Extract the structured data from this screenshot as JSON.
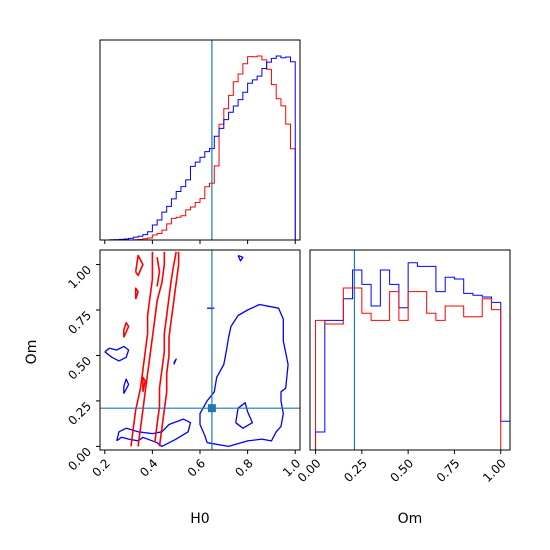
{
  "chart_data": [
    {
      "panel": "H0-histogram",
      "type": "histogram",
      "xlim": [
        0.18,
        1.02
      ],
      "bins": [
        0.18,
        0.2,
        0.22,
        0.24,
        0.26,
        0.28,
        0.3,
        0.32,
        0.34,
        0.36,
        0.38,
        0.4,
        0.42,
        0.44,
        0.46,
        0.48,
        0.5,
        0.52,
        0.54,
        0.56,
        0.58,
        0.6,
        0.62,
        0.64,
        0.66,
        0.68,
        0.7,
        0.72,
        0.74,
        0.76,
        0.78,
        0.8,
        0.82,
        0.84,
        0.86,
        0.88,
        0.9,
        0.92,
        0.94,
        0.96,
        0.98,
        1.0,
        1.02
      ],
      "series": [
        {
          "color": "#ff0000",
          "values": [
            0,
            0,
            0,
            0,
            0,
            0,
            0,
            2,
            5,
            11,
            18,
            44,
            58,
            88,
            144,
            192,
            203,
            216,
            268,
            294,
            335,
            368,
            474,
            505,
            660,
            1030,
            1168,
            1288,
            1409,
            1478,
            1569,
            1632,
            1631,
            1638,
            1604,
            1520,
            1383,
            1257,
            1194,
            1031,
            812,
            0
          ]
        },
        {
          "color": "#0000ff",
          "values": [
            0,
            0,
            2,
            4,
            7,
            10,
            17,
            29,
            39,
            55,
            84,
            154,
            205,
            286,
            345,
            422,
            498,
            548,
            617,
            755,
            799,
            848,
            906,
            937,
            1064,
            1145,
            1235,
            1310,
            1374,
            1440,
            1515,
            1608,
            1642,
            1681,
            1759,
            1824,
            1863,
            1887,
            1869,
            1877,
            1828,
            0
          ]
        }
      ],
      "truth": 0.65
    },
    {
      "panel": "H0-Om-contours",
      "type": "contour",
      "xlabel": "H0",
      "ylabel": "Om",
      "xlim": [
        0.18,
        1.02
      ],
      "ylim": [
        -0.02,
        1.08
      ],
      "xticks": [
        "0.2",
        "0.4",
        "0.6",
        "0.8",
        "1.0"
      ],
      "yticks": [
        "0.00",
        "0.25",
        "0.50",
        "0.75",
        "1.00"
      ],
      "truth": {
        "x": 0.65,
        "y": 0.21
      },
      "series": [
        {
          "color": "#0000ff",
          "contours": [
            [
              [
                0.63,
                0.02
              ],
              [
                0.72,
                0.0
              ],
              [
                0.8,
                0.03
              ],
              [
                0.86,
                0.04
              ],
              [
                0.9,
                0.03
              ],
              [
                0.92,
                0.08
              ],
              [
                0.94,
                0.11
              ],
              [
                0.95,
                0.18
              ],
              [
                0.94,
                0.25
              ],
              [
                0.94,
                0.3
              ],
              [
                0.96,
                0.32
              ],
              [
                0.97,
                0.45
              ],
              [
                0.95,
                0.58
              ],
              [
                0.95,
                0.7
              ],
              [
                0.93,
                0.76
              ],
              [
                0.85,
                0.78
              ],
              [
                0.8,
                0.75
              ],
              [
                0.76,
                0.72
              ],
              [
                0.73,
                0.66
              ],
              [
                0.72,
                0.6
              ],
              [
                0.71,
                0.52
              ],
              [
                0.7,
                0.45
              ],
              [
                0.67,
                0.38
              ],
              [
                0.66,
                0.3
              ],
              [
                0.63,
                0.25
              ],
              [
                0.6,
                0.18
              ],
              [
                0.6,
                0.12
              ],
              [
                0.62,
                0.06
              ],
              [
                0.63,
                0.02
              ]
            ],
            [
              [
                0.25,
                0.03
              ],
              [
                0.27,
                0.05
              ],
              [
                0.3,
                0.04
              ],
              [
                0.34,
                0.03
              ],
              [
                0.36,
                0.05
              ],
              [
                0.42,
                0.02
              ],
              [
                0.44,
                0.0
              ],
              [
                0.5,
                0.04
              ],
              [
                0.55,
                0.08
              ],
              [
                0.56,
                0.13
              ],
              [
                0.53,
                0.15
              ],
              [
                0.47,
                0.12
              ],
              [
                0.44,
                0.08
              ],
              [
                0.4,
                0.07
              ],
              [
                0.34,
                0.08
              ],
              [
                0.29,
                0.1
              ],
              [
                0.26,
                0.08
              ],
              [
                0.25,
                0.03
              ]
            ],
            [
              [
                0.2,
                0.52
              ],
              [
                0.23,
                0.49
              ],
              [
                0.26,
                0.47
              ],
              [
                0.29,
                0.49
              ],
              [
                0.3,
                0.53
              ],
              [
                0.28,
                0.55
              ],
              [
                0.25,
                0.53
              ],
              [
                0.22,
                0.54
              ],
              [
                0.2,
                0.52
              ]
            ],
            [
              [
                0.75,
                0.13
              ],
              [
                0.78,
                0.1
              ],
              [
                0.82,
                0.13
              ],
              [
                0.8,
                0.19
              ],
              [
                0.79,
                0.24
              ],
              [
                0.76,
                0.21
              ],
              [
                0.75,
                0.13
              ]
            ],
            [
              [
                0.28,
                0.29
              ],
              [
                0.3,
                0.34
              ],
              [
                0.29,
                0.37
              ],
              [
                0.28,
                0.33
              ],
              [
                0.28,
                0.29
              ]
            ],
            [
              [
                0.63,
                0.76
              ],
              [
                0.66,
                0.76
              ]
            ],
            [
              [
                0.76,
                1.05
              ],
              [
                0.77,
                1.02
              ],
              [
                0.78,
                1.04
              ],
              [
                0.76,
                1.05
              ]
            ],
            [
              [
                0.49,
                0.45
              ],
              [
                0.5,
                0.48
              ],
              [
                0.49,
                0.46
              ]
            ]
          ]
        },
        {
          "color": "#ff0000",
          "contours": [
            [
              [
                0.31,
                0.0
              ],
              [
                0.32,
                0.1
              ],
              [
                0.33,
                0.2
              ],
              [
                0.35,
                0.32
              ],
              [
                0.36,
                0.42
              ],
              [
                0.37,
                0.52
              ],
              [
                0.38,
                0.62
              ],
              [
                0.38,
                0.72
              ],
              [
                0.39,
                0.82
              ],
              [
                0.4,
                0.92
              ],
              [
                0.4,
                1.0
              ],
              [
                0.4,
                1.07
              ]
            ],
            [
              [
                0.34,
                0.0
              ],
              [
                0.35,
                0.1
              ],
              [
                0.36,
                0.2
              ],
              [
                0.37,
                0.3
              ],
              [
                0.38,
                0.4
              ],
              [
                0.39,
                0.5
              ],
              [
                0.4,
                0.6
              ],
              [
                0.41,
                0.7
              ],
              [
                0.42,
                0.8
              ],
              [
                0.44,
                0.9
              ],
              [
                0.45,
                1.0
              ],
              [
                0.45,
                1.07
              ]
            ],
            [
              [
                0.41,
                0.02
              ],
              [
                0.42,
                0.12
              ],
              [
                0.43,
                0.22
              ],
              [
                0.43,
                0.32
              ],
              [
                0.44,
                0.42
              ],
              [
                0.45,
                0.52
              ],
              [
                0.45,
                0.62
              ],
              [
                0.46,
                0.72
              ],
              [
                0.47,
                0.82
              ],
              [
                0.48,
                0.92
              ],
              [
                0.49,
                1.0
              ],
              [
                0.5,
                1.07
              ]
            ],
            [
              [
                0.43,
                0.0
              ],
              [
                0.44,
                0.1
              ],
              [
                0.45,
                0.2
              ],
              [
                0.46,
                0.3
              ],
              [
                0.46,
                0.4
              ],
              [
                0.47,
                0.5
              ],
              [
                0.47,
                0.6
              ],
              [
                0.48,
                0.7
              ],
              [
                0.49,
                0.8
              ],
              [
                0.5,
                0.9
              ],
              [
                0.51,
                1.0
              ],
              [
                0.51,
                1.07
              ]
            ],
            [
              [
                0.33,
                0.96
              ],
              [
                0.34,
                1.05
              ],
              [
                0.36,
                1.0
              ],
              [
                0.34,
                0.94
              ],
              [
                0.33,
                0.96
              ]
            ],
            [
              [
                0.42,
                0.88
              ],
              [
                0.43,
                0.96
              ],
              [
                0.42,
                1.04
              ]
            ],
            [
              [
                0.28,
                0.6
              ],
              [
                0.3,
                0.66
              ],
              [
                0.29,
                0.68
              ],
              [
                0.28,
                0.64
              ],
              [
                0.28,
                0.6
              ]
            ],
            [
              [
                0.33,
                0.81
              ],
              [
                0.34,
                0.85
              ],
              [
                0.33,
                0.87
              ],
              [
                0.33,
                0.81
              ]
            ],
            [
              [
                0.36,
                0.3
              ],
              [
                0.37,
                0.36
              ],
              [
                0.36,
                0.38
              ],
              [
                0.36,
                0.3
              ]
            ]
          ]
        }
      ]
    },
    {
      "panel": "Om-histogram",
      "type": "histogram",
      "xlabel": "Om",
      "xlim": [
        -0.03,
        1.05
      ],
      "xticks": [
        "0.00",
        "0.25",
        "0.50",
        "0.75",
        "1.00"
      ],
      "bins": [
        0.0,
        0.05,
        0.1,
        0.15,
        0.2,
        0.25,
        0.3,
        0.35,
        0.4,
        0.45,
        0.5,
        0.55,
        0.6,
        0.65,
        0.7,
        0.75,
        0.8,
        0.85,
        0.9,
        0.95,
        1.0
      ],
      "series": [
        {
          "color": "#0000ff",
          "values": [
            0.1,
            0.72,
            0.72,
            0.84,
            1.0,
            0.92,
            0.8,
            1.0,
            0.92,
            0.79,
            1.04,
            1.02,
            1.02,
            0.88,
            0.96,
            0.95,
            0.87,
            0.86,
            0.85,
            0.82,
            0.16
          ]
        },
        {
          "color": "#ff0000",
          "values": [
            0.72,
            0.7,
            0.7,
            0.9,
            0.9,
            0.76,
            0.72,
            0.72,
            0.88,
            0.72,
            0.88,
            0.88,
            0.76,
            0.72,
            0.8,
            0.8,
            0.74,
            0.74,
            0.84,
            0.78,
            0.0
          ]
        }
      ],
      "truth": 0.21
    }
  ]
}
